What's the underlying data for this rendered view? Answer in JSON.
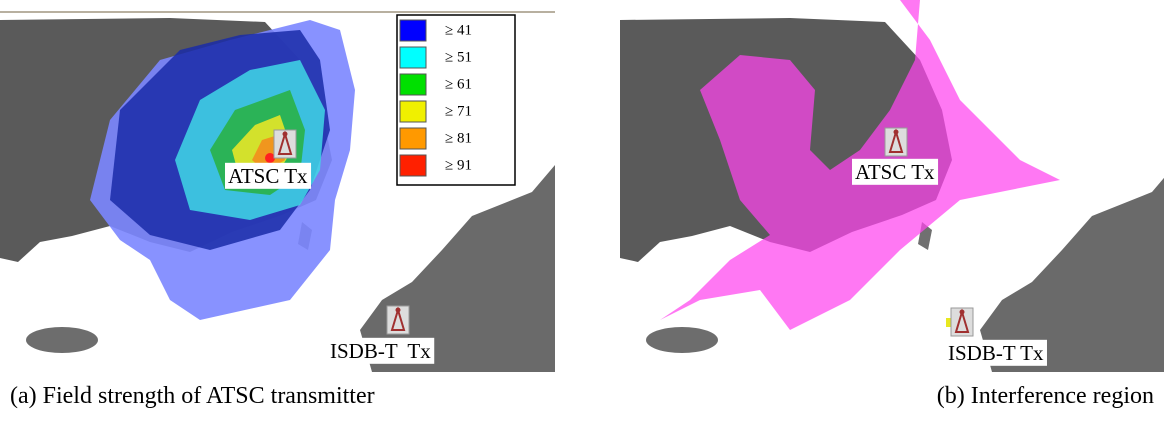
{
  "panels": [
    {
      "caption": "(a) Field strength of ATSC transmitter",
      "legend": [
        {
          "label": "≥ 41",
          "color": "#0000ff"
        },
        {
          "label": "≥ 51",
          "color": "#00ffff"
        },
        {
          "label": "≥ 61",
          "color": "#00e000"
        },
        {
          "label": "≥ 71",
          "color": "#f0f000"
        },
        {
          "label": "≥ 81",
          "color": "#ff9900"
        },
        {
          "label": "≥ 91",
          "color": "#ff2000"
        }
      ],
      "labels": [
        "ATSC Tx",
        "ISDB-T  Tx"
      ]
    },
    {
      "caption": "(b) Interference region",
      "labels": [
        "ATSC Tx",
        "ISDB-T Tx"
      ]
    }
  ]
}
